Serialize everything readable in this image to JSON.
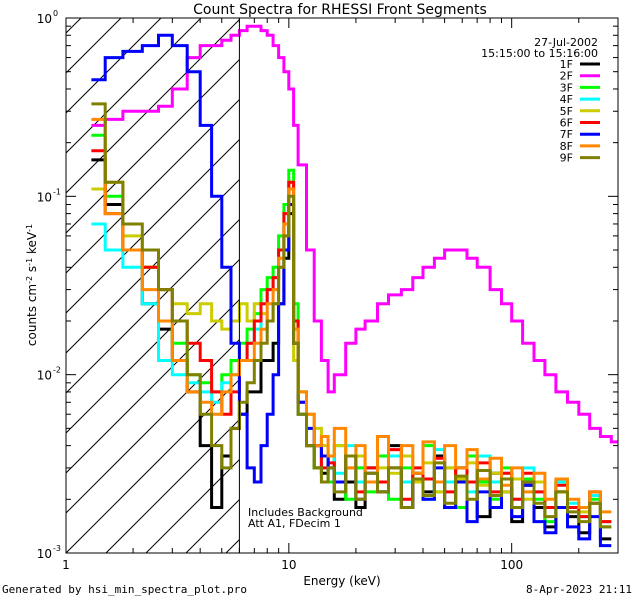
{
  "chart_data": {
    "type": "line",
    "title": "Count Spectra for RHESSI Front Segments",
    "xlabel": "Energy (keV)",
    "ylabel_parts": [
      "counts cm",
      "-2",
      " s",
      "-1",
      " keV",
      "-1"
    ],
    "xscale": "log",
    "yscale": "log",
    "xlim": [
      1,
      300
    ],
    "ylim": [
      0.001,
      1
    ],
    "x_tick_labels": [
      {
        "value": 1,
        "label": "1"
      },
      {
        "value": 10,
        "label": "10"
      },
      {
        "value": 100,
        "label": "100"
      }
    ],
    "y_tick_labels": [
      {
        "value": 1,
        "base": "10",
        "exp": "0"
      },
      {
        "value": 0.1,
        "base": "10",
        "exp": "-1"
      },
      {
        "value": 0.01,
        "base": "10",
        "exp": "-2"
      },
      {
        "value": 0.001,
        "base": "10",
        "exp": "-3"
      }
    ],
    "date": "27-Jul-2002",
    "time_range": "15:15:00 to 15:16:00",
    "annotations": [
      "Includes Background",
      "Att A1, FDecim 1"
    ],
    "marker_line_x": 6,
    "legend_position": "top-right",
    "series": [
      {
        "name": "1F",
        "color": "#000000",
        "x": [
          1.3,
          1.5,
          1.8,
          2.2,
          2.6,
          3.0,
          3.5,
          4.0,
          4.5,
          5.0,
          5.5,
          6.0,
          6.5,
          7.0,
          7.5,
          8.0,
          8.5,
          9.0,
          9.5,
          10.0,
          10.5,
          11.0,
          12,
          13,
          14,
          15,
          16,
          18,
          20,
          22,
          25,
          28,
          32,
          36,
          40,
          45,
          50,
          56,
          63,
          70,
          80,
          90,
          100,
          112,
          126,
          141,
          158,
          178,
          200,
          224,
          250
        ],
        "y": [
          0.16,
          0.09,
          0.05,
          0.025,
          0.018,
          0.012,
          0.008,
          0.004,
          0.0018,
          0.0035,
          0.005,
          0.006,
          0.008,
          0.008,
          0.012,
          0.012,
          0.015,
          0.025,
          0.045,
          0.08,
          0.02,
          0.006,
          0.004,
          0.003,
          0.0028,
          0.0035,
          0.002,
          0.0025,
          0.0018,
          0.003,
          0.0022,
          0.004,
          0.0018,
          0.0028,
          0.0022,
          0.0035,
          0.0018,
          0.003,
          0.0025,
          0.0016,
          0.0028,
          0.0022,
          0.0015,
          0.0024,
          0.0018,
          0.0014,
          0.0022,
          0.0016,
          0.0013,
          0.0019,
          0.0012
        ]
      },
      {
        "name": "2F",
        "color": "#ff00ff",
        "x": [
          1.3,
          1.5,
          1.8,
          2.2,
          2.6,
          3.0,
          3.5,
          4.0,
          4.5,
          5.0,
          5.5,
          6.0,
          6.5,
          7.0,
          7.5,
          8.0,
          8.5,
          9.0,
          9.5,
          10.0,
          10.5,
          11.0,
          12,
          13,
          14,
          15,
          16,
          18,
          20,
          22,
          25,
          28,
          32,
          36,
          40,
          45,
          50,
          56,
          63,
          70,
          80,
          90,
          100,
          112,
          126,
          141,
          158,
          178,
          200,
          224,
          250,
          280
        ],
        "y": [
          0.25,
          0.27,
          0.3,
          0.3,
          0.32,
          0.4,
          0.6,
          0.7,
          0.7,
          0.75,
          0.8,
          0.85,
          0.9,
          0.9,
          0.85,
          0.8,
          0.7,
          0.6,
          0.5,
          0.4,
          0.25,
          0.15,
          0.05,
          0.02,
          0.012,
          0.008,
          0.01,
          0.015,
          0.018,
          0.02,
          0.025,
          0.028,
          0.03,
          0.035,
          0.04,
          0.045,
          0.05,
          0.05,
          0.045,
          0.04,
          0.03,
          0.025,
          0.02,
          0.015,
          0.012,
          0.01,
          0.008,
          0.007,
          0.006,
          0.005,
          0.0045,
          0.0042
        ]
      },
      {
        "name": "3F",
        "color": "#00ff00",
        "x": [
          1.3,
          1.5,
          1.8,
          2.2,
          2.6,
          3.0,
          3.5,
          4.0,
          4.5,
          5.0,
          5.5,
          6.0,
          6.5,
          7.0,
          7.5,
          8.0,
          8.5,
          9.0,
          9.5,
          10.0,
          10.5,
          11.0,
          12,
          13,
          14,
          15,
          16,
          18,
          20,
          22,
          25,
          28,
          32,
          36,
          40,
          45,
          50,
          56,
          63,
          70,
          80,
          90,
          100,
          112,
          126,
          141,
          158,
          178,
          200,
          224,
          250
        ],
        "y": [
          0.22,
          0.1,
          0.05,
          0.04,
          0.02,
          0.015,
          0.01,
          0.009,
          0.008,
          0.01,
          0.012,
          0.015,
          0.018,
          0.022,
          0.03,
          0.035,
          0.04,
          0.06,
          0.09,
          0.14,
          0.025,
          0.008,
          0.004,
          0.003,
          0.0035,
          0.0025,
          0.004,
          0.002,
          0.003,
          0.0022,
          0.0035,
          0.002,
          0.003,
          0.0025,
          0.004,
          0.0022,
          0.003,
          0.0018,
          0.0035,
          0.0025,
          0.002,
          0.003,
          0.0018,
          0.0026,
          0.002,
          0.0015,
          0.0025,
          0.0018,
          0.0016,
          0.002,
          0.0014
        ]
      },
      {
        "name": "4F",
        "color": "#00ffff",
        "x": [
          1.3,
          1.5,
          1.8,
          2.2,
          2.6,
          3.0,
          3.5,
          4.0,
          4.5,
          5.0,
          5.5,
          6.0,
          6.5,
          7.0,
          7.5,
          8.0,
          8.5,
          9.0,
          9.5,
          10.0,
          10.5,
          11.0,
          12,
          13,
          14,
          15,
          16,
          18,
          20,
          22,
          25,
          28,
          32,
          36,
          40,
          45,
          50,
          56,
          63,
          70,
          80,
          90,
          100,
          112,
          126,
          141,
          158,
          178,
          200,
          224,
          250
        ],
        "y": [
          0.07,
          0.05,
          0.04,
          0.025,
          0.012,
          0.01,
          0.009,
          0.008,
          0.007,
          0.009,
          0.01,
          0.012,
          0.015,
          0.018,
          0.025,
          0.03,
          0.035,
          0.05,
          0.07,
          0.1,
          0.015,
          0.006,
          0.005,
          0.004,
          0.003,
          0.0035,
          0.0028,
          0.004,
          0.0025,
          0.003,
          0.0022,
          0.0035,
          0.0025,
          0.003,
          0.002,
          0.0038,
          0.0025,
          0.003,
          0.0022,
          0.0035,
          0.0025,
          0.0028,
          0.002,
          0.003,
          0.0022,
          0.0018,
          0.0025,
          0.0019,
          0.0016,
          0.0021,
          0.0015
        ]
      },
      {
        "name": "5F",
        "color": "#cccc00",
        "x": [
          1.3,
          1.5,
          1.8,
          2.2,
          2.6,
          3.0,
          3.5,
          4.0,
          4.5,
          5.0,
          5.5,
          6.0,
          6.5,
          7.0,
          7.5,
          8.0,
          8.5,
          9.0,
          9.5,
          10.0,
          10.5,
          11.0,
          12,
          13,
          14,
          15,
          16,
          18,
          20,
          22,
          25,
          28,
          32,
          36,
          40,
          45,
          50,
          56,
          63,
          70,
          80,
          90,
          100,
          112,
          126,
          141,
          158,
          178,
          200,
          224,
          250
        ],
        "y": [
          0.11,
          0.12,
          0.06,
          0.04,
          0.03,
          0.025,
          0.022,
          0.025,
          0.02,
          0.018,
          0.02,
          0.025,
          0.02,
          0.025,
          0.022,
          0.02,
          0.025,
          0.04,
          0.06,
          0.12,
          0.012,
          0.008,
          0.006,
          0.005,
          0.004,
          0.0035,
          0.004,
          0.003,
          0.0035,
          0.0025,
          0.003,
          0.0028,
          0.0035,
          0.0025,
          0.0032,
          0.0022,
          0.003,
          0.0026,
          0.0032,
          0.0024,
          0.0028,
          0.0022,
          0.0026,
          0.002,
          0.0025,
          0.0018,
          0.0022,
          0.0018,
          0.0017,
          0.0019,
          0.0015
        ]
      },
      {
        "name": "6F",
        "color": "#ff0000",
        "x": [
          1.3,
          1.5,
          1.8,
          2.2,
          2.6,
          3.0,
          3.5,
          4.0,
          4.5,
          5.0,
          5.5,
          6.0,
          6.5,
          7.0,
          7.5,
          8.0,
          8.5,
          9.0,
          9.5,
          10.0,
          10.5,
          11.0,
          12,
          13,
          14,
          15,
          16,
          18,
          20,
          22,
          25,
          28,
          32,
          36,
          40,
          45,
          50,
          56,
          63,
          70,
          80,
          90,
          100,
          112,
          126,
          141,
          158,
          178,
          200,
          224,
          250
        ],
        "y": [
          0.18,
          0.08,
          0.05,
          0.04,
          0.03,
          0.02,
          0.015,
          0.012,
          0.008,
          0.006,
          0.008,
          0.012,
          0.015,
          0.02,
          0.025,
          0.03,
          0.035,
          0.05,
          0.08,
          0.12,
          0.02,
          0.007,
          0.004,
          0.004,
          0.003,
          0.0032,
          0.0025,
          0.0035,
          0.0022,
          0.003,
          0.0025,
          0.0038,
          0.002,
          0.003,
          0.0026,
          0.0034,
          0.0022,
          0.003,
          0.0025,
          0.0032,
          0.0022,
          0.0028,
          0.002,
          0.0028,
          0.0022,
          0.0018,
          0.0024,
          0.0018,
          0.0016,
          0.0022,
          0.0015
        ]
      },
      {
        "name": "7F",
        "color": "#0000ff",
        "x": [
          1.3,
          1.5,
          1.8,
          2.2,
          2.6,
          3.0,
          3.5,
          4.0,
          4.5,
          5.0,
          5.5,
          6.0,
          6.5,
          7.0,
          7.5,
          8.0,
          8.5,
          9.0,
          9.5,
          10.0,
          10.5,
          11.0,
          12,
          13,
          14,
          15,
          16,
          18,
          20,
          22,
          25,
          28,
          32,
          36,
          40,
          45,
          50,
          56,
          63,
          70,
          80,
          90,
          100,
          112,
          126,
          141,
          158,
          178,
          200,
          224,
          250
        ],
        "y": [
          0.45,
          0.6,
          0.65,
          0.7,
          0.8,
          0.7,
          0.5,
          0.25,
          0.1,
          0.04,
          0.015,
          0.006,
          0.003,
          0.0025,
          0.004,
          0.006,
          0.01,
          0.025,
          0.05,
          0.09,
          0.015,
          0.007,
          0.005,
          0.004,
          0.0035,
          0.003,
          0.0025,
          0.0035,
          0.002,
          0.0028,
          0.0022,
          0.003,
          0.0018,
          0.0026,
          0.002,
          0.003,
          0.0018,
          0.0025,
          0.0015,
          0.0022,
          0.0018,
          0.0026,
          0.0016,
          0.0024,
          0.0015,
          0.0013,
          0.0018,
          0.0014,
          0.0012,
          0.0016,
          0.0011
        ]
      },
      {
        "name": "8F",
        "color": "#ff8800",
        "x": [
          1.3,
          1.5,
          1.8,
          2.2,
          2.6,
          3.0,
          3.5,
          4.0,
          4.5,
          5.0,
          5.5,
          6.0,
          6.5,
          7.0,
          7.5,
          8.0,
          8.5,
          9.0,
          9.5,
          10.0,
          10.5,
          11.0,
          12,
          13,
          14,
          15,
          16,
          18,
          20,
          22,
          25,
          28,
          32,
          36,
          40,
          45,
          50,
          56,
          63,
          70,
          80,
          90,
          100,
          112,
          126,
          141,
          158,
          178,
          200,
          224,
          250
        ],
        "y": [
          0.27,
          0.08,
          0.05,
          0.03,
          0.02,
          0.012,
          0.008,
          0.007,
          0.006,
          0.008,
          0.01,
          0.012,
          0.012,
          0.015,
          0.018,
          0.025,
          0.03,
          0.045,
          0.07,
          0.11,
          0.018,
          0.008,
          0.006,
          0.004,
          0.0045,
          0.0035,
          0.005,
          0.003,
          0.004,
          0.0025,
          0.0045,
          0.003,
          0.004,
          0.0028,
          0.0042,
          0.0025,
          0.004,
          0.003,
          0.0038,
          0.0026,
          0.0034,
          0.0024,
          0.003,
          0.0022,
          0.0028,
          0.002,
          0.0026,
          0.002,
          0.0018,
          0.0022,
          0.0017
        ]
      },
      {
        "name": "9F",
        "color": "#808000",
        "x": [
          1.3,
          1.5,
          1.8,
          2.2,
          2.6,
          3.0,
          3.5,
          4.0,
          4.5,
          5.0,
          5.5,
          6.0,
          6.5,
          7.0,
          7.5,
          8.0,
          8.5,
          9.0,
          9.5,
          10.0,
          10.5,
          11.0,
          12,
          13,
          14,
          15,
          16,
          18,
          20,
          22,
          25,
          28,
          32,
          36,
          40,
          45,
          50,
          56,
          63,
          70,
          80,
          90,
          100,
          112,
          126,
          141,
          158,
          178,
          200,
          224,
          250
        ],
        "y": [
          0.33,
          0.12,
          0.07,
          0.05,
          0.03,
          0.02,
          0.01,
          0.006,
          0.004,
          0.003,
          0.005,
          0.007,
          0.009,
          0.012,
          0.015,
          0.02,
          0.025,
          0.04,
          0.06,
          0.1,
          0.015,
          0.006,
          0.004,
          0.003,
          0.0025,
          0.003,
          0.0022,
          0.0035,
          0.002,
          0.0028,
          0.0022,
          0.003,
          0.0018,
          0.0026,
          0.0021,
          0.0032,
          0.0019,
          0.0027,
          0.002,
          0.0029,
          0.0021,
          0.0026,
          0.0018,
          0.0025,
          0.0019,
          0.0016,
          0.0022,
          0.0017,
          0.0015,
          0.0019,
          0.0014
        ]
      }
    ]
  },
  "footer": {
    "left": "Generated by hsi_min_spectra_plot.pro",
    "right": "8-Apr-2023 21:11"
  }
}
